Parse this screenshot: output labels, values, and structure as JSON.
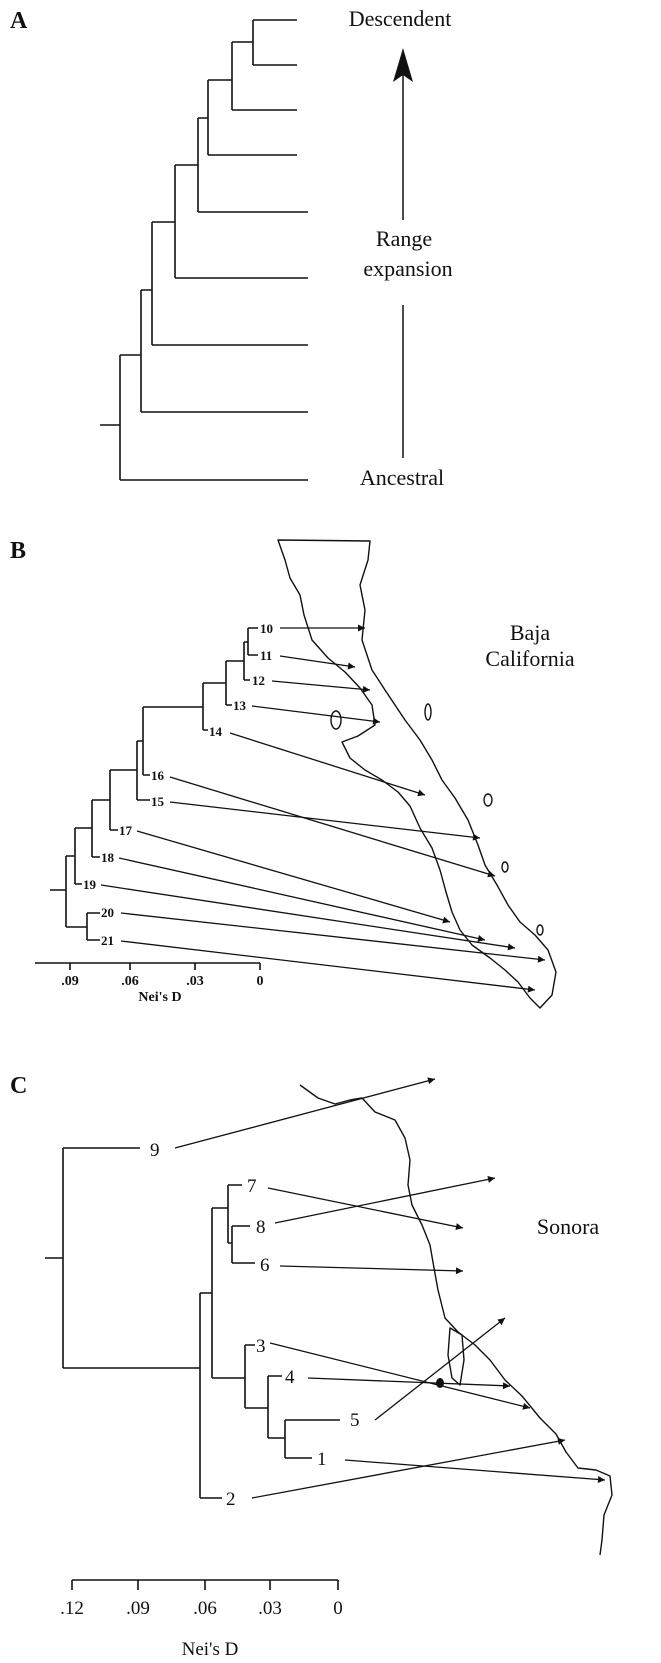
{
  "panel_a": {
    "label": "A",
    "top": "Descendent",
    "middle": [
      "Range",
      "expansion"
    ],
    "bottom": "Ancestral"
  },
  "panel_b": {
    "label": "B",
    "region": [
      "Baja",
      "California"
    ],
    "nodes": [
      "10",
      "11",
      "12",
      "13",
      "14",
      "16",
      "15",
      "17",
      "18",
      "19",
      "20",
      "21"
    ],
    "axis": {
      "ticks": [
        ".09",
        ".06",
        ".03",
        "0"
      ],
      "title": "Nei's D"
    }
  },
  "panel_c": {
    "label": "C",
    "region": "Sonora",
    "nodes": [
      "9",
      "7",
      "8",
      "6",
      "3",
      "4",
      "5",
      "1",
      "2"
    ],
    "axis": {
      "ticks": [
        ".12",
        ".09",
        ".06",
        ".03",
        "0"
      ],
      "title": "Nei's D"
    }
  }
}
